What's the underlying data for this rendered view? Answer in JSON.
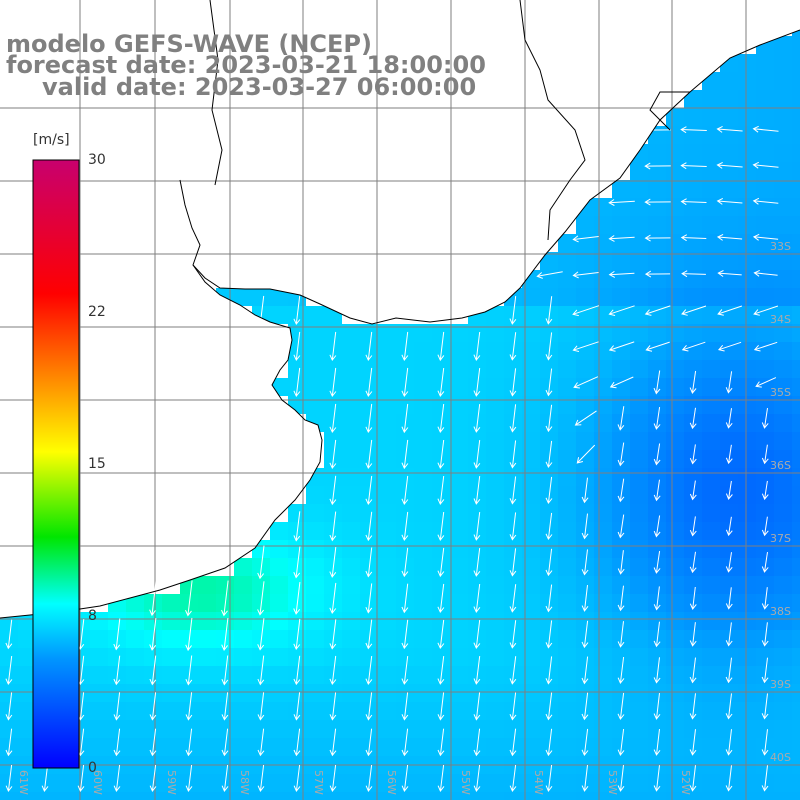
{
  "title": {
    "model": "modelo GEFS-WAVE (NCEP)",
    "forecast": "forecast date: 2023-03-21 18:00:00",
    "valid": "valid date: 2023-03-27 06:00:00"
  },
  "colorbar": {
    "unit": "[m/s]",
    "min": 0,
    "max": 30,
    "ticks": [
      "0",
      "8",
      "15",
      "22",
      "30"
    ],
    "colors": [
      "#0000ff",
      "#0096ff",
      "#00ffff",
      "#00e600",
      "#ffff00",
      "#ff8000",
      "#ff0000",
      "#c8006e"
    ]
  },
  "map": {
    "variable": "10 m wind speed and direction",
    "lat_labels": [
      "33S",
      "34S",
      "35S",
      "36S",
      "37S",
      "38S",
      "39S",
      "40S"
    ],
    "lon_labels": [
      "61W",
      "60W",
      "59W",
      "58W",
      "57W",
      "56W",
      "55W",
      "54W",
      "53W",
      "52W"
    ],
    "land_color": "#ffffff",
    "grid_color": "#7f7f7f",
    "coast_color": "#000000",
    "arrow_color": "#ffffff"
  }
}
